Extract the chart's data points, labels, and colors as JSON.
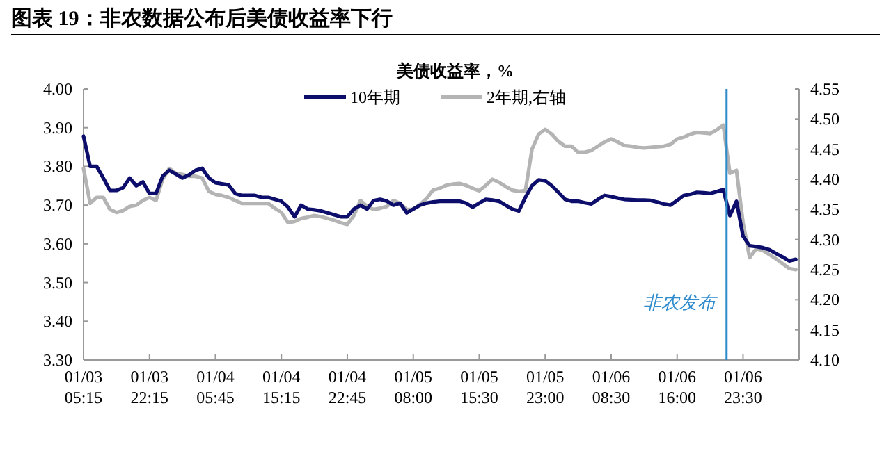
{
  "chart_data": {
    "type": "line",
    "title": "图表 19：非农数据公布后美债收益率下行",
    "legend_title": "美债收益率，%",
    "legend": "top",
    "line_style": "solid",
    "marker": "none",
    "grid": false,
    "categories": [
      "01/03 05:15",
      null,
      null,
      null,
      null,
      null,
      null,
      null,
      null,
      null,
      "01/03 22:15",
      null,
      null,
      null,
      null,
      null,
      null,
      null,
      null,
      null,
      "01/04 05:45",
      null,
      null,
      null,
      null,
      null,
      null,
      null,
      null,
      null,
      "01/04 15:15",
      null,
      null,
      null,
      null,
      null,
      null,
      null,
      null,
      null,
      "01/04 22:45",
      null,
      null,
      null,
      null,
      null,
      null,
      null,
      null,
      null,
      "01/05 08:00",
      null,
      null,
      null,
      null,
      null,
      null,
      null,
      null,
      null,
      "01/05 15:30",
      null,
      null,
      null,
      null,
      null,
      null,
      null,
      null,
      null,
      "01/05 23:00",
      null,
      null,
      null,
      null,
      null,
      null,
      null,
      null,
      null,
      "01/06 08:30",
      null,
      null,
      null,
      null,
      null,
      null,
      null,
      null,
      null,
      "01/06 16:00",
      null,
      null,
      null,
      null,
      null,
      null,
      null,
      null,
      null,
      "01/06 23:30",
      null,
      null,
      null,
      null,
      null,
      null,
      null,
      null
    ],
    "ylim": [
      3.3,
      4.0
    ],
    "yticks": [
      {
        "value": 3.3,
        "label": "3.30"
      },
      {
        "value": 3.4,
        "label": "3.40"
      },
      {
        "value": 3.5,
        "label": "3.50"
      },
      {
        "value": 3.6,
        "label": "3.60"
      },
      {
        "value": 3.7,
        "label": "3.70"
      },
      {
        "value": 3.8,
        "label": "3.80"
      },
      {
        "value": 3.9,
        "label": "3.90"
      },
      {
        "value": 4.0,
        "label": "4.00"
      }
    ],
    "y2lim": [
      4.1,
      4.55
    ],
    "y2ticks": [
      {
        "value": 4.1,
        "label": "4.10"
      },
      {
        "value": 4.15,
        "label": "4.15"
      },
      {
        "value": 4.2,
        "label": "4.20"
      },
      {
        "value": 4.25,
        "label": "4.25"
      },
      {
        "value": 4.3,
        "label": "4.30"
      },
      {
        "value": 4.35,
        "label": "4.35"
      },
      {
        "value": 4.4,
        "label": "4.40"
      },
      {
        "value": 4.45,
        "label": "4.45"
      },
      {
        "value": 4.5,
        "label": "4.50"
      },
      {
        "value": 4.55,
        "label": "4.55"
      }
    ],
    "annotations": [
      "非农发布"
    ],
    "series": [
      {
        "name": "10年期",
        "color": "#0d0d6b",
        "values": [
          3.878,
          3.8,
          3.8,
          3.77,
          3.738,
          3.738,
          3.745,
          3.77,
          3.75,
          3.76,
          3.73,
          3.73,
          3.775,
          3.79,
          3.78,
          3.77,
          3.778,
          3.79,
          3.795,
          3.77,
          3.758,
          3.755,
          3.752,
          3.73,
          3.725,
          3.725,
          3.725,
          3.72,
          3.72,
          3.715,
          3.71,
          3.695,
          3.67,
          3.7,
          3.69,
          3.688,
          3.685,
          3.68,
          3.675,
          3.67,
          3.67,
          3.69,
          3.7,
          3.69,
          3.712,
          3.715,
          3.71,
          3.7,
          3.705,
          3.68,
          3.69,
          3.7,
          3.705,
          3.708,
          3.71,
          3.71,
          3.71,
          3.71,
          3.705,
          3.695,
          3.705,
          3.715,
          3.713,
          3.71,
          3.7,
          3.69,
          3.685,
          3.72,
          3.75,
          3.765,
          3.763,
          3.75,
          3.733,
          3.715,
          3.71,
          3.71,
          3.706,
          3.703,
          3.715,
          3.725,
          3.722,
          3.718,
          3.715,
          3.714,
          3.713,
          3.713,
          3.712,
          3.708,
          3.703,
          3.7,
          3.712,
          3.725,
          3.728,
          3.733,
          3.732,
          3.73,
          3.735,
          3.74,
          3.673,
          3.71,
          3.62,
          3.595,
          3.593,
          3.59,
          3.585,
          3.575,
          3.566,
          3.556,
          3.56
        ]
      },
      {
        "name": "2年期,右轴",
        "color": "#b4b4b4",
        "axis": "y2",
        "values": [
          4.418,
          4.36,
          4.37,
          4.37,
          4.35,
          4.345,
          4.348,
          4.355,
          4.357,
          4.365,
          4.37,
          4.365,
          4.4,
          4.418,
          4.41,
          4.408,
          4.405,
          4.405,
          4.402,
          4.38,
          4.375,
          4.373,
          4.37,
          4.365,
          4.36,
          4.36,
          4.36,
          4.36,
          4.36,
          4.352,
          4.345,
          4.328,
          4.33,
          4.335,
          4.337,
          4.34,
          4.338,
          4.335,
          4.332,
          4.328,
          4.325,
          4.34,
          4.365,
          4.355,
          4.35,
          4.352,
          4.355,
          4.365,
          4.36,
          4.35,
          4.35,
          4.358,
          4.368,
          4.382,
          4.385,
          4.39,
          4.392,
          4.393,
          4.39,
          4.385,
          4.381,
          4.39,
          4.4,
          4.395,
          4.388,
          4.382,
          4.38,
          4.381,
          4.45,
          4.475,
          4.483,
          4.475,
          4.463,
          4.455,
          4.455,
          4.445,
          4.445,
          4.448,
          4.455,
          4.462,
          4.467,
          4.462,
          4.456,
          4.455,
          4.453,
          4.452,
          4.453,
          4.454,
          4.455,
          4.458,
          4.467,
          4.47,
          4.475,
          4.478,
          4.477,
          4.476,
          4.482,
          4.49,
          4.41,
          4.415,
          4.328,
          4.27,
          4.285,
          4.282,
          4.275,
          4.268,
          4.26,
          4.252,
          4.25
        ]
      }
    ]
  }
}
